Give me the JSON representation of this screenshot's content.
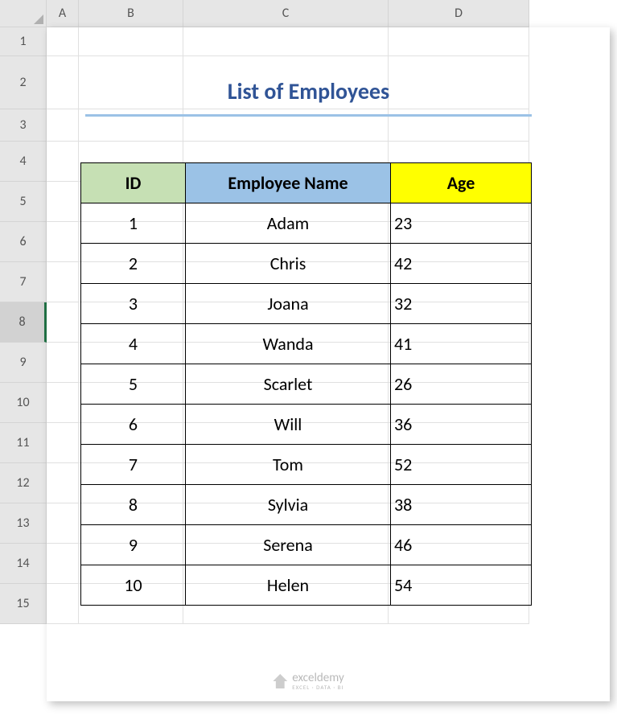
{
  "columns": [
    "A",
    "B",
    "C",
    "D"
  ],
  "rows": [
    "1",
    "2",
    "3",
    "4",
    "5",
    "6",
    "7",
    "8",
    "9",
    "10",
    "11",
    "12",
    "13",
    "14",
    "15"
  ],
  "selected_row_index": 7,
  "title": "List of Employees",
  "title_color": "#305496",
  "title_underline_color": "#9bc2e6",
  "table": {
    "headers": {
      "id": {
        "label": "ID",
        "bg": "#c6e0b4"
      },
      "name": {
        "label": "Employee Name",
        "bg": "#9bc2e6"
      },
      "age": {
        "label": "Age",
        "bg": "#ffff00"
      }
    },
    "data": [
      {
        "id": "1",
        "name": "Adam",
        "age": "23"
      },
      {
        "id": "2",
        "name": "Chris",
        "age": "42"
      },
      {
        "id": "3",
        "name": "Joana",
        "age": "32"
      },
      {
        "id": "4",
        "name": "Wanda",
        "age": "41"
      },
      {
        "id": "5",
        "name": "Scarlet",
        "age": "26"
      },
      {
        "id": "6",
        "name": "Will",
        "age": "36"
      },
      {
        "id": "7",
        "name": "Tom",
        "age": "52"
      },
      {
        "id": "8",
        "name": "Sylvia",
        "age": "38"
      },
      {
        "id": "9",
        "name": "Serena",
        "age": "46"
      },
      {
        "id": "10",
        "name": "Helen",
        "age": "54"
      }
    ]
  },
  "watermark": {
    "name": "exceldemy",
    "sub": "EXCEL · DATA · BI"
  },
  "colors": {
    "header_bg": "#e6e6e6",
    "grid_border": "#d4d4d4",
    "cell_border": "#e0e0e0",
    "table_border": "#000000",
    "excel_green": "#217346"
  }
}
